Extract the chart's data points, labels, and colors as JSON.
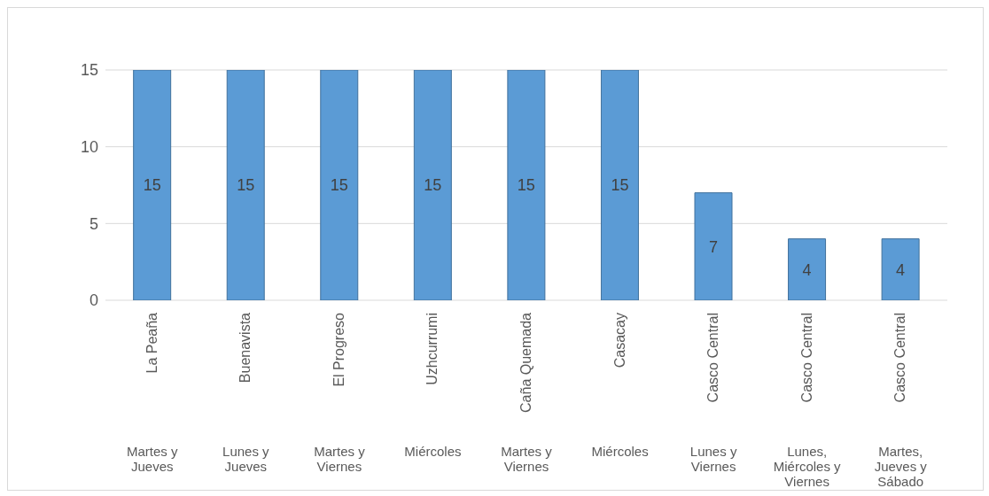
{
  "chart_data": {
    "type": "bar",
    "categories": [
      "La Peaña\nMartes y Jueves",
      "Buenavista\nLunes y Jueves",
      "El Progreso\nMartes y Viernes",
      "Uzhcurrumi\nMiércoles",
      "Caña Quemada\nMartes y Viernes",
      "Casacay\nMiércoles",
      "Casco Central\nLunes y Viernes",
      "Casco Central\nLunes, Miércoles y Viernes",
      "Casco Central\nMartes, Jueves y Sábado"
    ],
    "values": [
      15,
      15,
      15,
      15,
      15,
      15,
      7,
      4,
      4
    ],
    "color": "#5b9bd5",
    "ylim": [
      0,
      15
    ],
    "yticks": [
      0,
      5,
      10,
      15
    ],
    "grid": "y",
    "data_labels": true
  }
}
